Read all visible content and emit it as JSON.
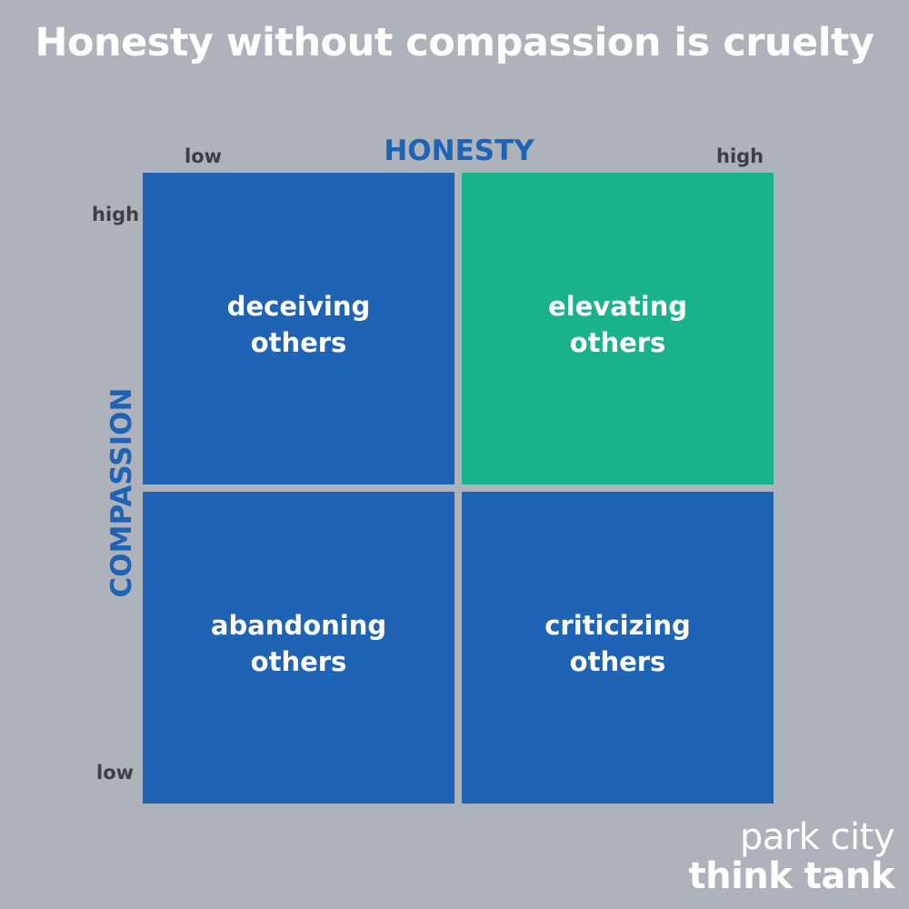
{
  "title": "Honesty without compassion is cruelty",
  "x_axis": {
    "label": "HONESTY",
    "low": "low",
    "high": "high"
  },
  "y_axis": {
    "label": "COMPASSION",
    "low": "low",
    "high": "high"
  },
  "quadrants": {
    "top_left": {
      "line1": "deceiving",
      "line2": "others",
      "color": "#1f63b5"
    },
    "top_right": {
      "line1": "elevating",
      "line2": "others",
      "color": "#1ab28b"
    },
    "bottom_left": {
      "line1": "abandoning",
      "line2": "others",
      "color": "#1f63b5"
    },
    "bottom_right": {
      "line1": "criticizing",
      "line2": "others",
      "color": "#1f63b5"
    }
  },
  "brand": {
    "line1": "park city",
    "line2": "think tank"
  },
  "colors": {
    "background": "#aeb2ba",
    "axis_accent": "#1f63b5",
    "quadrant_default": "#1f63b5",
    "quadrant_highlight": "#1ab28b"
  }
}
